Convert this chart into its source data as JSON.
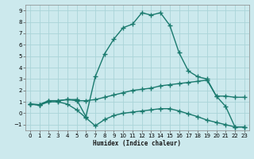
{
  "line1_x": [
    0,
    1,
    2,
    3,
    4,
    5,
    6,
    7,
    8,
    9,
    10,
    11,
    12,
    13,
    14,
    15,
    16,
    17,
    18,
    19,
    20,
    21,
    22,
    23
  ],
  "line1_y": [
    0.8,
    0.75,
    1.1,
    1.1,
    1.2,
    1.2,
    -0.3,
    3.2,
    5.2,
    6.5,
    7.5,
    7.8,
    8.8,
    8.6,
    8.8,
    7.7,
    5.3,
    3.7,
    3.2,
    3.0,
    1.5,
    0.6,
    -1.2,
    -1.2
  ],
  "line2_x": [
    0,
    1,
    2,
    3,
    4,
    5,
    6,
    7,
    8,
    9,
    10,
    11,
    12,
    13,
    14,
    15,
    16,
    17,
    18,
    19,
    20,
    21,
    22,
    23
  ],
  "line2_y": [
    0.8,
    0.75,
    1.1,
    1.1,
    1.2,
    1.1,
    1.1,
    1.2,
    1.4,
    1.6,
    1.8,
    2.0,
    2.1,
    2.2,
    2.4,
    2.5,
    2.6,
    2.7,
    2.8,
    2.9,
    1.5,
    1.5,
    1.4,
    1.4
  ],
  "line3_x": [
    0,
    1,
    2,
    3,
    4,
    5,
    6,
    7,
    8,
    9,
    10,
    11,
    12,
    13,
    14,
    15,
    16,
    17,
    18,
    19,
    20,
    21,
    22,
    23
  ],
  "line3_y": [
    0.8,
    0.7,
    1.0,
    1.0,
    0.8,
    0.3,
    -0.4,
    -1.1,
    -0.55,
    -0.2,
    -0.0,
    0.1,
    0.2,
    0.3,
    0.4,
    0.4,
    0.2,
    -0.05,
    -0.3,
    -0.6,
    -0.8,
    -1.0,
    -1.2,
    -1.2
  ],
  "bg_color": "#cce9ed",
  "grid_color": "#aad4d8",
  "line_color": "#1a7a6e",
  "marker": "+",
  "xlabel": "Humidex (Indice chaleur)",
  "ylim": [
    -1.5,
    9.5
  ],
  "xlim": [
    -0.5,
    23.5
  ],
  "yticks": [
    -1,
    0,
    1,
    2,
    3,
    4,
    5,
    6,
    7,
    8,
    9
  ],
  "xticks": [
    0,
    1,
    2,
    3,
    4,
    5,
    6,
    7,
    8,
    9,
    10,
    11,
    12,
    13,
    14,
    15,
    16,
    17,
    18,
    19,
    20,
    21,
    22,
    23
  ],
  "linewidth": 1.0,
  "markersize": 4,
  "markeredgewidth": 1.0
}
